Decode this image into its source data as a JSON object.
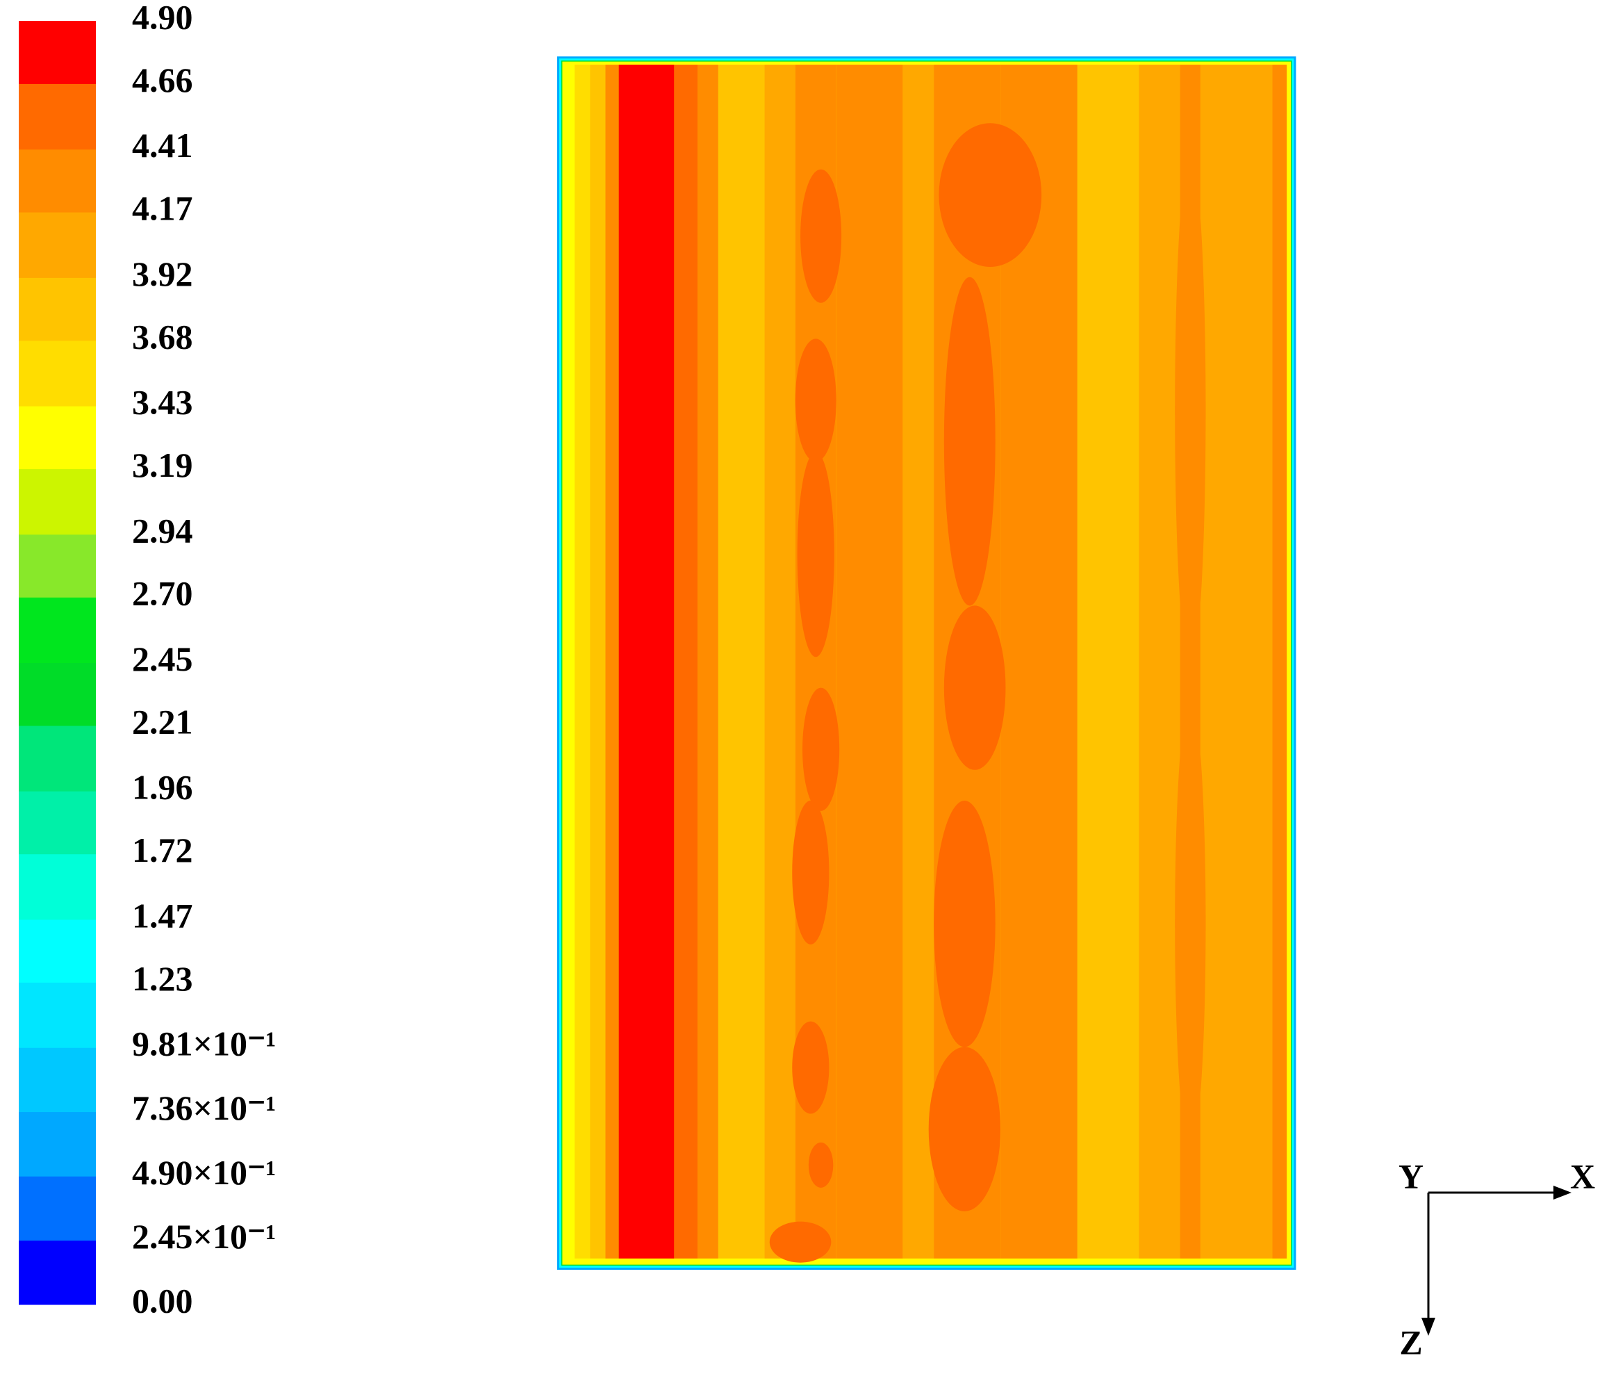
{
  "chart_data": {
    "type": "contour",
    "levels": [
      {
        "value": 0,
        "label": "0.00"
      },
      {
        "value": 0.245,
        "label": "2.45×10⁻¹"
      },
      {
        "value": 0.49,
        "label": "4.90×10⁻¹"
      },
      {
        "value": 0.736,
        "label": "7.36×10⁻¹"
      },
      {
        "value": 0.981,
        "label": "9.81×10⁻¹"
      },
      {
        "value": 1.23,
        "label": "1.23"
      },
      {
        "value": 1.47,
        "label": "1.47"
      },
      {
        "value": 1.72,
        "label": "1.72"
      },
      {
        "value": 1.96,
        "label": "1.96"
      },
      {
        "value": 2.21,
        "label": "2.21"
      },
      {
        "value": 2.45,
        "label": "2.45"
      },
      {
        "value": 2.7,
        "label": "2.70"
      },
      {
        "value": 2.94,
        "label": "2.94"
      },
      {
        "value": 3.19,
        "label": "3.19"
      },
      {
        "value": 3.43,
        "label": "3.43"
      },
      {
        "value": 3.68,
        "label": "3.68"
      },
      {
        "value": 3.92,
        "label": "3.92"
      },
      {
        "value": 4.17,
        "label": "4.17"
      },
      {
        "value": 4.41,
        "label": "4.41"
      },
      {
        "value": 4.66,
        "label": "4.66"
      },
      {
        "value": 4.9,
        "label": "4.90"
      }
    ],
    "colors": [
      "#0000ff",
      "#0070ff",
      "#00a8ff",
      "#00c8ff",
      "#00e6ff",
      "#00ffff",
      "#00ffd8",
      "#00f0a8",
      "#00e67a",
      "#00dc28",
      "#00e61e",
      "#88e82a",
      "#ccf500",
      "#ffff00",
      "#ffdd00",
      "#ffc400",
      "#ffa800",
      "#ff8c00",
      "#ff6a00",
      "#ff0000"
    ],
    "axis_labels": {
      "x": "X",
      "y": "Y",
      "z": "Z"
    }
  }
}
